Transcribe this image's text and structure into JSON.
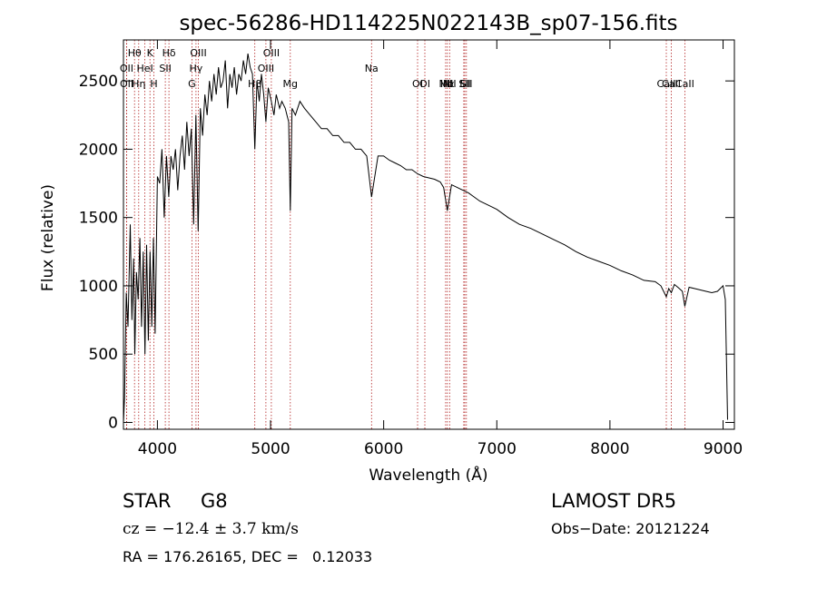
{
  "chart_data": {
    "type": "line",
    "title": "spec-56286-HD114225N022143B_sp07-156.fits",
    "xlabel": "Wavelength (Å)",
    "ylabel": "Flux (relative)",
    "xlim": [
      3700,
      9100
    ],
    "ylim": [
      -50,
      2800
    ],
    "xticks": [
      4000,
      5000,
      6000,
      7000,
      8000,
      9000
    ],
    "yticks": [
      0,
      500,
      1000,
      1500,
      2000,
      2500
    ],
    "grid": false,
    "line_color": "#000000",
    "marker_color": "#b22222",
    "series": [
      {
        "x": [
          3700,
          3710,
          3725,
          3740,
          3760,
          3775,
          3790,
          3800,
          3815,
          3830,
          3845,
          3860,
          3875,
          3890,
          3905,
          3920,
          3935,
          3950,
          3965,
          3980,
          4000,
          4020,
          4040,
          4060,
          4080,
          4100,
          4120,
          4140,
          4160,
          4180,
          4200,
          4220,
          4240,
          4260,
          4280,
          4300,
          4320,
          4340,
          4360,
          4380,
          4400,
          4420,
          4440,
          4460,
          4480,
          4500,
          4520,
          4540,
          4560,
          4580,
          4600,
          4620,
          4640,
          4660,
          4680,
          4700,
          4720,
          4740,
          4760,
          4780,
          4800,
          4820,
          4840,
          4861,
          4880,
          4900,
          4920,
          4940,
          4959,
          4980,
          5007,
          5030,
          5050,
          5080,
          5100,
          5130,
          5160,
          5175,
          5190,
          5220,
          5260,
          5300,
          5350,
          5400,
          5450,
          5500,
          5550,
          5600,
          5650,
          5700,
          5750,
          5800,
          5850,
          5893,
          5950,
          6000,
          6050,
          6100,
          6150,
          6200,
          6250,
          6300,
          6350,
          6400,
          6450,
          6500,
          6530,
          6563,
          6600,
          6650,
          6700,
          6750,
          6800,
          6850,
          6900,
          6950,
          7000,
          7100,
          7200,
          7300,
          7400,
          7500,
          7600,
          7700,
          7800,
          7900,
          8000,
          8100,
          8200,
          8300,
          8400,
          8450,
          8498,
          8520,
          8542,
          8570,
          8600,
          8640,
          8662,
          8700,
          8750,
          8800,
          8850,
          8900,
          8950,
          9000,
          9020,
          9040
        ],
        "y": [
          0,
          180,
          950,
          700,
          1450,
          750,
          1200,
          500,
          1100,
          900,
          1350,
          700,
          1250,
          500,
          1300,
          600,
          1250,
          700,
          1350,
          650,
          1800,
          1750,
          2000,
          1500,
          1950,
          1650,
          1950,
          1850,
          2000,
          1700,
          1950,
          2100,
          1850,
          2200,
          1950,
          2150,
          1450,
          2250,
          1400,
          2300,
          2100,
          2400,
          2250,
          2500,
          2350,
          2550,
          2400,
          2600,
          2450,
          2500,
          2650,
          2300,
          2550,
          2450,
          2600,
          2400,
          2550,
          2500,
          2650,
          2550,
          2700,
          2600,
          2550,
          2000,
          2500,
          2350,
          2550,
          2400,
          2200,
          2450,
          2350,
          2250,
          2400,
          2300,
          2350,
          2300,
          2200,
          1550,
          2300,
          2250,
          2350,
          2300,
          2250,
          2200,
          2150,
          2150,
          2100,
          2100,
          2050,
          2050,
          2000,
          2000,
          1950,
          1650,
          1950,
          1950,
          1920,
          1900,
          1880,
          1850,
          1850,
          1820,
          1800,
          1790,
          1780,
          1760,
          1720,
          1550,
          1740,
          1720,
          1700,
          1680,
          1650,
          1620,
          1600,
          1580,
          1560,
          1500,
          1450,
          1420,
          1380,
          1340,
          1300,
          1250,
          1210,
          1180,
          1150,
          1110,
          1080,
          1040,
          1030,
          1000,
          920,
          980,
          950,
          1010,
          990,
          960,
          850,
          990,
          980,
          970,
          960,
          950,
          960,
          1000,
          900,
          20
        ]
      }
    ],
    "lines": [
      {
        "label": "Hθ",
        "x": 3798
      },
      {
        "label": "K",
        "x": 3934
      },
      {
        "label": "Hδ",
        "x": 4102
      },
      {
        "label": "OIII",
        "x": 4363
      },
      {
        "label": "OIII",
        "x": 5007
      },
      {
        "label": "OII",
        "x": 3727
      },
      {
        "label": "HeI",
        "x": 3889
      },
      {
        "label": "SII",
        "x": 4070
      },
      {
        "label": "Hγ",
        "x": 4341
      },
      {
        "label": "OIII",
        "x": 4959
      },
      {
        "label": "OII",
        "x": 3729
      },
      {
        "label": "Hη",
        "x": 3835
      },
      {
        "label": "H",
        "x": 3969
      },
      {
        "label": "G",
        "x": 4305
      },
      {
        "label": "Mg",
        "x": 5175
      },
      {
        "label": "Na",
        "x": 5893
      },
      {
        "label": "OI",
        "x": 6300
      },
      {
        "label": "OI",
        "x": 6364
      },
      {
        "label": "Hα",
        "x": 6563
      },
      {
        "label": "NII",
        "x": 6548
      },
      {
        "label": "NII",
        "x": 6583
      },
      {
        "label": "SII",
        "x": 6717
      },
      {
        "label": "Li",
        "x": 6708
      },
      {
        "label": "SII",
        "x": 6731
      },
      {
        "label": "CaII",
        "x": 8498
      },
      {
        "label": "CaII",
        "x": 8542
      },
      {
        "label": "CaII",
        "x": 8662
      },
      {
        "label": "Hβ",
        "x": 4861
      }
    ]
  },
  "info": {
    "class": "STAR",
    "subclass": "G8",
    "survey": "LAMOST DR5",
    "cz": "cz = −12.4 ± 3.7 km/s",
    "obs_date": "Obs−Date: 20121224",
    "radec": "RA = 176.26165, DEC =   0.12033"
  }
}
